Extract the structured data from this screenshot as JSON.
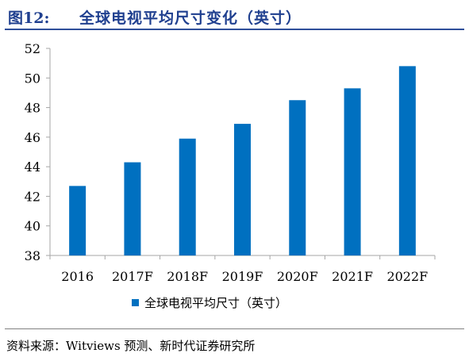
{
  "header": {
    "figure_number": "图12:",
    "title": "全球电视平均尺寸变化（英寸）"
  },
  "source": "资料来源：Witviews 预测、新时代证券研究所",
  "colors": {
    "bar": "#0070c0",
    "title": "#1f3f8f",
    "axis": "#a6a6a6"
  },
  "chart_data": {
    "type": "bar",
    "categories": [
      "2016",
      "2017F",
      "2018F",
      "2019F",
      "2020F",
      "2021F",
      "2022F"
    ],
    "series": [
      {
        "name": "全球电视平均尺寸（英寸）",
        "values": [
          42.7,
          44.3,
          45.9,
          46.9,
          48.5,
          49.3,
          50.8
        ]
      }
    ],
    "ylim": [
      38,
      52
    ],
    "yticks": [
      38,
      40,
      42,
      44,
      46,
      48,
      50,
      52
    ],
    "grid": false,
    "legend_position": "bottom"
  }
}
